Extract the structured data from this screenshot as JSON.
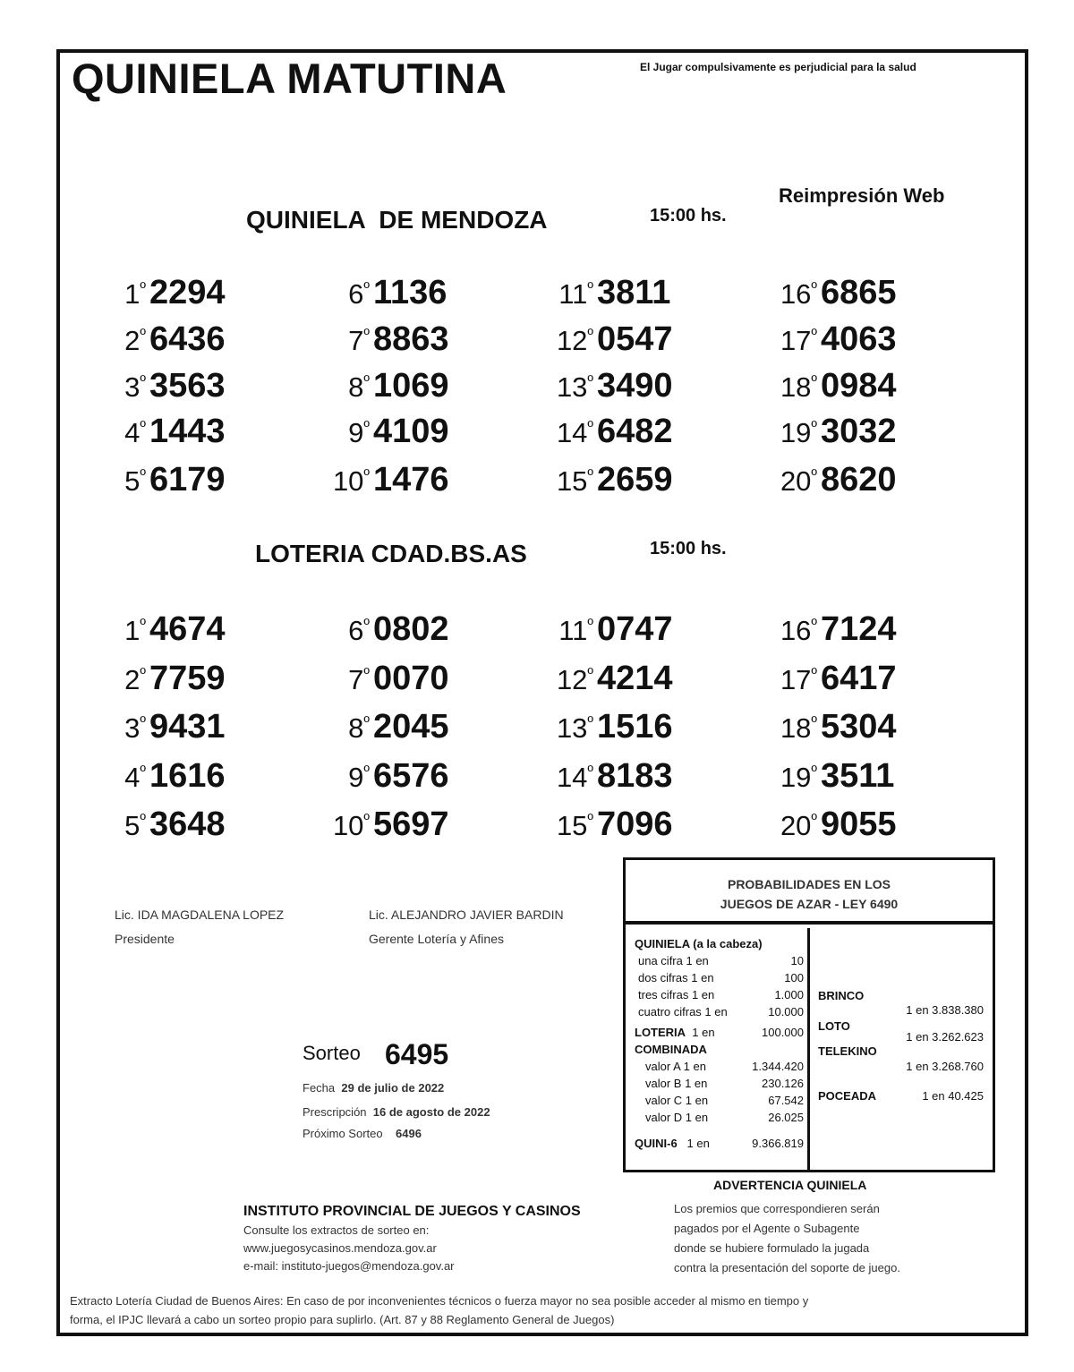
{
  "header": {
    "title": "QUINIELA MATUTINA",
    "warning": "El Jugar compulsivamente es perjudicial para la salud",
    "reprint": "Reimpresión Web"
  },
  "sections": [
    {
      "name": "QUINIELA  DE MENDOZA",
      "time": "15:00 hs.",
      "results": [
        [
          "1º",
          "2294"
        ],
        [
          "2º",
          "6436"
        ],
        [
          "3º",
          "3563"
        ],
        [
          "4º",
          "1443"
        ],
        [
          "5º",
          "6179"
        ],
        [
          "6º",
          "1136"
        ],
        [
          "7º",
          "8863"
        ],
        [
          "8º",
          "1069"
        ],
        [
          "9º",
          "4109"
        ],
        [
          "10º",
          "1476"
        ],
        [
          "11º",
          "3811"
        ],
        [
          "12º",
          "0547"
        ],
        [
          "13º",
          "3490"
        ],
        [
          "14º",
          "6482"
        ],
        [
          "15º",
          "2659"
        ],
        [
          "16º",
          "6865"
        ],
        [
          "17º",
          "4063"
        ],
        [
          "18º",
          "0984"
        ],
        [
          "19º",
          "3032"
        ],
        [
          "20º",
          "8620"
        ]
      ]
    },
    {
      "name": "LOTERIA CDAD.BS.AS",
      "time": "15:00 hs.",
      "results": [
        [
          "1º",
          "4674"
        ],
        [
          "2º",
          "7759"
        ],
        [
          "3º",
          "9431"
        ],
        [
          "4º",
          "1616"
        ],
        [
          "5º",
          "3648"
        ],
        [
          "6º",
          "0802"
        ],
        [
          "7º",
          "0070"
        ],
        [
          "8º",
          "2045"
        ],
        [
          "9º",
          "6576"
        ],
        [
          "10º",
          "5697"
        ],
        [
          "11º",
          "0747"
        ],
        [
          "12º",
          "4214"
        ],
        [
          "13º",
          "1516"
        ],
        [
          "14º",
          "8183"
        ],
        [
          "15º",
          "7096"
        ],
        [
          "16º",
          "7124"
        ],
        [
          "17º",
          "6417"
        ],
        [
          "18º",
          "5304"
        ],
        [
          "19º",
          "3511"
        ],
        [
          "20º",
          "9055"
        ]
      ]
    }
  ],
  "signatures": [
    {
      "name": "Lic. IDA MAGDALENA LOPEZ",
      "role": "Presidente"
    },
    {
      "name": "Lic. ALEJANDRO JAVIER BARDIN",
      "role": "Gerente Lotería y Afines"
    }
  ],
  "sorteo": {
    "label": "Sorteo",
    "number": "6495",
    "fecha_label": "Fecha",
    "fecha": "29 de julio de 2022",
    "prescripcion_label": "Prescripción",
    "prescripcion": "16 de agosto de 2022",
    "proximo_label": "Próximo Sorteo",
    "proximo": "6496"
  },
  "probabilities": {
    "title1": "PROBABILIDADES EN LOS",
    "title2": "JUEGOS DE AZAR - LEY 6490",
    "quiniela_title": "QUINIELA (a la cabeza)",
    "quiniela": [
      [
        "una cifra  1 en",
        "10"
      ],
      [
        "dos cifras 1 en",
        "100"
      ],
      [
        "tres cifras 1 en",
        "1.000"
      ],
      [
        "cuatro cifras 1 en",
        "10.000"
      ]
    ],
    "loteria": [
      "LOTERIA",
      "1 en",
      "100.000"
    ],
    "combinada_title": "COMBINADA",
    "combinada": [
      [
        "valor A 1 en",
        "1.344.420"
      ],
      [
        "valor B 1 en",
        "230.126"
      ],
      [
        "valor C 1 en",
        "67.542"
      ],
      [
        "valor D 1 en",
        "26.025"
      ]
    ],
    "quini6": [
      "QUINI-6",
      "1 en",
      "9.366.819"
    ],
    "brinco": [
      "BRINCO",
      "1 en 3.838.380"
    ],
    "loto": [
      "LOTO",
      "1 en 3.262.623"
    ],
    "telekino": [
      "TELEKINO",
      "1 en 3.268.760"
    ],
    "poceada": [
      "POCEADA",
      "1 en 40.425"
    ]
  },
  "advertencia": {
    "title": "ADVERTENCIA QUINIELA",
    "lines": [
      "Los premios que correspondieren serán",
      "pagados por el Agente o Subagente",
      "donde se hubiere formulado la jugada",
      "contra la presentación del soporte de juego."
    ]
  },
  "institute": {
    "name": "INSTITUTO PROVINCIAL DE JUEGOS Y CASINOS",
    "line1": "Consulte los extractos de sorteo en:",
    "web": "www.juegosycasinos.mendoza.gov.ar",
    "email": "e-mail:  instituto-juegos@mendoza.gov.ar"
  },
  "footer": {
    "line1": "Extracto Lotería Ciudad de Buenos Aires: En caso de por inconvenientes técnicos o fuerza mayor no sea posible acceder al mismo en tiempo y",
    "line2": "forma, el IPJC llevará a cabo un sorteo propio para suplirlo. (Art. 87 y 88 Reglamento General de Juegos)"
  }
}
